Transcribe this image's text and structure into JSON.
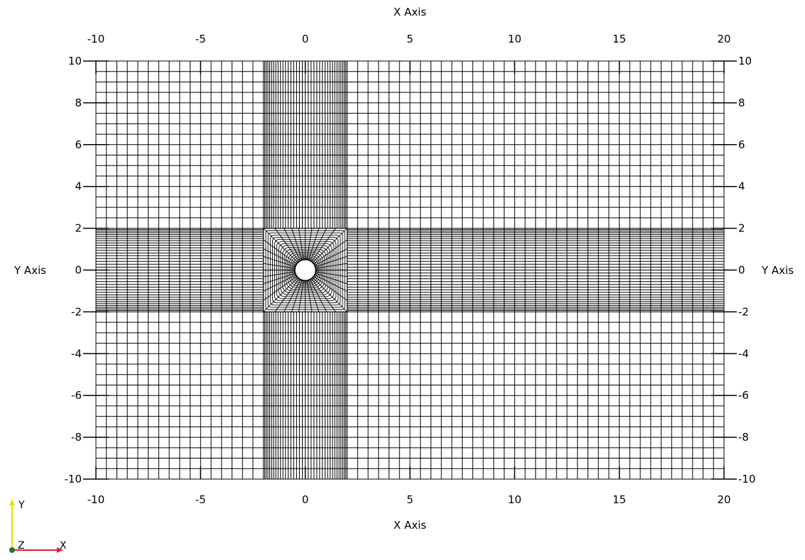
{
  "view": {
    "x_axis_title_top": "X Axis",
    "x_axis_title_bottom": "X Axis",
    "y_axis_title_left": "Y Axis",
    "y_axis_title_right": "Y Axis",
    "x_range": [
      -10,
      20
    ],
    "y_range": [
      -10,
      10
    ],
    "x_ticks": [
      -10,
      -5,
      0,
      5,
      10,
      15,
      20
    ],
    "y_ticks": [
      10,
      8,
      6,
      4,
      2,
      0,
      -2,
      -4,
      -6,
      -8,
      -10
    ],
    "x_tick_labels": [
      "-10",
      "-5",
      "0",
      "5",
      "10",
      "15",
      "20"
    ],
    "y_tick_labels": [
      "10",
      "8",
      "6",
      "4",
      "2",
      "0",
      "-2",
      "-4",
      "-6",
      "-8",
      "-10"
    ],
    "mesh": {
      "outer_spacing": 0.5,
      "refined_band": [
        -2,
        2
      ],
      "refined_spacing_min": 0.1,
      "inner_block": [
        -2,
        2
      ],
      "cylinder_center": [
        0,
        0
      ],
      "cylinder_radius": 0.5
    },
    "orientation_axes": {
      "x_label": "X",
      "y_label": "Y",
      "z_label": "Z",
      "x_color": "#e0202a",
      "y_color": "#e8e000",
      "z_color": "#1f7a2a"
    },
    "colors": {
      "background": "#ffffff",
      "mesh": "#000000"
    }
  }
}
